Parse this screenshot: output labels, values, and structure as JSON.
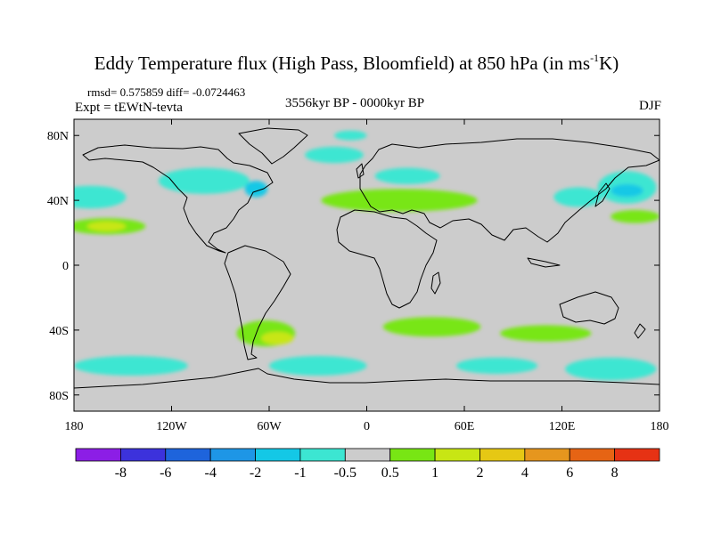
{
  "title": {
    "main": "Eddy Temperature flux (High Pass, Bloomfield) at 850 hPa (in ms",
    "superscript": "-1",
    "unit_tail": "K)"
  },
  "stats_line": "rmsd= 0.575859 diff= -0.0724463",
  "experiment": "Expt = tEWtN-tevta",
  "period": "3556kyr BP - 0000kyr BP",
  "season": "DJF",
  "chart_data": {
    "type": "heatmap",
    "projection": "cylindrical-equidistant",
    "lon_range": [
      -180,
      180
    ],
    "lat_range": [
      -90,
      90
    ],
    "background_color": "#cccccc",
    "x_ticks": [
      {
        "value": -180,
        "label": "180"
      },
      {
        "value": -120,
        "label": "120W"
      },
      {
        "value": -60,
        "label": "60W"
      },
      {
        "value": 0,
        "label": "0"
      },
      {
        "value": 60,
        "label": "60E"
      },
      {
        "value": 120,
        "label": "120E"
      },
      {
        "value": 180,
        "label": "180"
      }
    ],
    "y_ticks": [
      {
        "value": 80,
        "label": "80N"
      },
      {
        "value": 40,
        "label": "40N"
      },
      {
        "value": 0,
        "label": "0"
      },
      {
        "value": -40,
        "label": "40S"
      },
      {
        "value": -80,
        "label": "80S"
      }
    ],
    "colorbar": {
      "colors": [
        "#8c1ee6",
        "#3c32dc",
        "#1e64dc",
        "#1e96e6",
        "#14c8e6",
        "#3ce6d2",
        "#cccccc",
        "#78e614",
        "#c8e614",
        "#e6c814",
        "#e6961e",
        "#e66414",
        "#e63214"
      ],
      "labels": [
        "-8",
        "-6",
        "-4",
        "-2",
        "-1",
        "-0.5",
        "0.5",
        "1",
        "2",
        "4",
        "6",
        "8"
      ]
    },
    "regions": [
      {
        "lon": -170,
        "lat": 42,
        "w": 22,
        "h": 7,
        "v": -0.7
      },
      {
        "lon": -160,
        "lat": 24,
        "w": 24,
        "h": 5,
        "v": 0.7
      },
      {
        "lon": -160,
        "lat": 24,
        "w": 12,
        "h": 3,
        "v": 1.5
      },
      {
        "lon": -100,
        "lat": 52,
        "w": 28,
        "h": 8,
        "v": -0.7
      },
      {
        "lon": -68,
        "lat": 47,
        "w": 7,
        "h": 5,
        "v": -1.5
      },
      {
        "lon": -20,
        "lat": 68,
        "w": 18,
        "h": 5,
        "v": -0.7
      },
      {
        "lon": -10,
        "lat": 80,
        "w": 10,
        "h": 3,
        "v": -0.7
      },
      {
        "lon": 20,
        "lat": 40,
        "w": 48,
        "h": 7,
        "v": 0.7
      },
      {
        "lon": 25,
        "lat": 55,
        "w": 20,
        "h": 5,
        "v": -0.7
      },
      {
        "lon": 130,
        "lat": 42,
        "w": 15,
        "h": 6,
        "v": -0.7
      },
      {
        "lon": 160,
        "lat": 48,
        "w": 18,
        "h": 10,
        "v": -0.7
      },
      {
        "lon": 160,
        "lat": 46,
        "w": 10,
        "h": 4,
        "v": -1.5
      },
      {
        "lon": 165,
        "lat": 30,
        "w": 15,
        "h": 4,
        "v": 0.7
      },
      {
        "lon": -62,
        "lat": -42,
        "w": 18,
        "h": 8,
        "v": 0.7
      },
      {
        "lon": -55,
        "lat": -45,
        "w": 10,
        "h": 4,
        "v": 1.5
      },
      {
        "lon": 40,
        "lat": -38,
        "w": 30,
        "h": 6,
        "v": 0.7
      },
      {
        "lon": 110,
        "lat": -42,
        "w": 28,
        "h": 5,
        "v": 0.7
      },
      {
        "lon": -145,
        "lat": -62,
        "w": 35,
        "h": 6,
        "v": -0.7
      },
      {
        "lon": -30,
        "lat": -62,
        "w": 30,
        "h": 6,
        "v": -0.7
      },
      {
        "lon": 80,
        "lat": -62,
        "w": 25,
        "h": 5,
        "v": -0.7
      },
      {
        "lon": 150,
        "lat": -64,
        "w": 28,
        "h": 7,
        "v": -0.7
      }
    ]
  }
}
